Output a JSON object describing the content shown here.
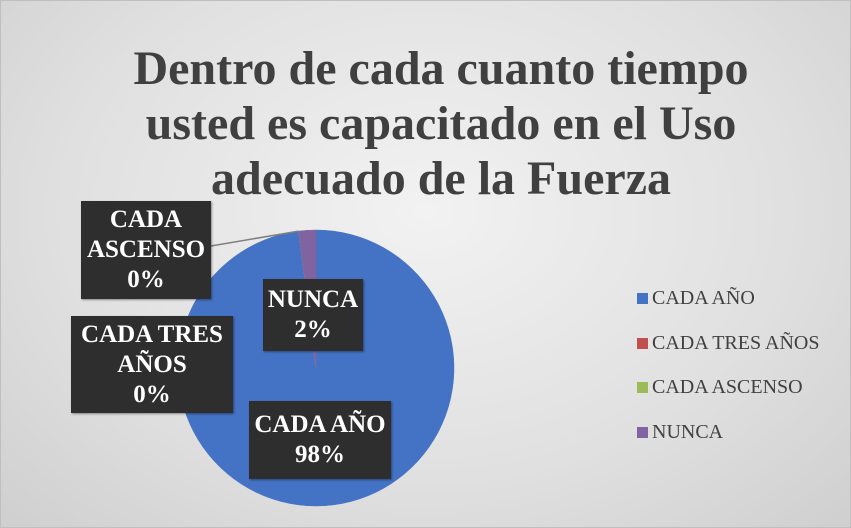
{
  "chart_data": {
    "type": "pie",
    "title": "Dentro de cada cuanto tiempo usted es capacitado en el Uso adecuado de la Fuerza",
    "categories": [
      "CADA AÑO",
      "CADA TRES AÑOS",
      "CADA ASCENSO",
      "NUNCA"
    ],
    "values": [
      98,
      0,
      0,
      2
    ],
    "value_labels": [
      "98%",
      "0%",
      "0%",
      "2%"
    ],
    "colors": [
      "#4472c4",
      "#c0504d",
      "#9bbb59",
      "#8064a2"
    ],
    "legend": "right"
  }
}
